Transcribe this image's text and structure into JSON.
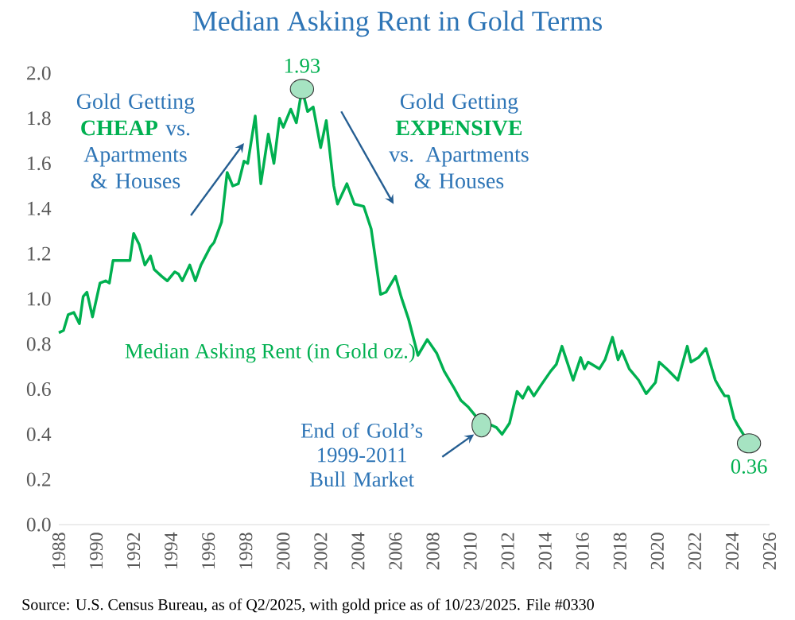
{
  "chart_data": {
    "type": "line",
    "title": "Median Asking Rent in Gold Terms",
    "x": [
      1988.0,
      1988.25,
      1988.5,
      1988.8,
      1989.1,
      1989.3,
      1989.5,
      1989.8,
      1990.2,
      1990.5,
      1990.7,
      1990.9,
      1991.2,
      1991.8,
      1992.0,
      1992.3,
      1992.6,
      1992.9,
      1993.1,
      1993.5,
      1993.8,
      1994.2,
      1994.4,
      1994.6,
      1995.0,
      1995.3,
      1995.6,
      1996.1,
      1996.3,
      1996.7,
      1997.0,
      1997.3,
      1997.6,
      1997.9,
      1998.1,
      1998.5,
      1998.8,
      1999.2,
      1999.5,
      1999.8,
      2000.0,
      2000.4,
      2000.7,
      2001.0,
      2001.3,
      2001.6,
      2002.0,
      2002.3,
      2002.7,
      2002.9,
      2003.4,
      2003.8,
      2004.3,
      2004.7,
      2005.2,
      2005.5,
      2006.0,
      2006.3,
      2006.7,
      2007.2,
      2007.7,
      2008.2,
      2008.6,
      2009.1,
      2009.5,
      2009.9,
      2010.4,
      2010.6,
      2010.9,
      2011.4,
      2011.7,
      2012.1,
      2012.5,
      2012.8,
      2013.1,
      2013.4,
      2013.8,
      2014.3,
      2014.6,
      2014.9,
      2015.5,
      2015.9,
      2016.1,
      2016.3,
      2016.9,
      2017.2,
      2017.6,
      2017.9,
      2018.1,
      2018.5,
      2019.0,
      2019.4,
      2019.9,
      2020.1,
      2020.5,
      2021.1,
      2021.6,
      2021.8,
      2022.2,
      2022.6,
      2023.1,
      2023.3,
      2023.6,
      2023.8,
      2024.1,
      2024.3,
      2024.9
    ],
    "series": [
      {
        "name": "Median Asking Rent (in Gold oz.)",
        "color": "#00b050",
        "values": [
          0.85,
          0.86,
          0.93,
          0.94,
          0.89,
          1.01,
          1.03,
          0.92,
          1.07,
          1.08,
          1.07,
          1.17,
          1.17,
          1.17,
          1.29,
          1.24,
          1.15,
          1.19,
          1.13,
          1.1,
          1.08,
          1.12,
          1.11,
          1.08,
          1.15,
          1.08,
          1.15,
          1.23,
          1.25,
          1.34,
          1.56,
          1.5,
          1.51,
          1.61,
          1.6,
          1.81,
          1.51,
          1.73,
          1.6,
          1.8,
          1.76,
          1.84,
          1.78,
          1.93,
          1.83,
          1.85,
          1.67,
          1.79,
          1.5,
          1.42,
          1.51,
          1.42,
          1.41,
          1.31,
          1.02,
          1.03,
          1.1,
          1.01,
          0.91,
          0.75,
          0.82,
          0.76,
          0.68,
          0.61,
          0.55,
          0.52,
          0.47,
          0.44,
          0.45,
          0.43,
          0.4,
          0.45,
          0.59,
          0.56,
          0.61,
          0.57,
          0.62,
          0.68,
          0.71,
          0.79,
          0.64,
          0.74,
          0.69,
          0.72,
          0.69,
          0.73,
          0.83,
          0.73,
          0.77,
          0.69,
          0.64,
          0.58,
          0.63,
          0.72,
          0.69,
          0.64,
          0.79,
          0.72,
          0.74,
          0.78,
          0.64,
          0.61,
          0.57,
          0.57,
          0.47,
          0.44,
          0.36
        ],
        "value_labels": [
          null,
          null,
          null,
          null,
          null,
          null,
          null,
          null,
          null,
          null,
          null,
          null,
          null,
          null,
          null,
          null,
          null,
          null,
          null,
          null,
          null,
          null,
          null,
          null,
          null,
          null,
          null,
          null,
          null,
          null,
          null,
          null,
          null,
          null,
          null,
          null,
          null,
          null,
          null,
          null,
          null,
          null,
          null,
          "1.93",
          null,
          null,
          null,
          null,
          null,
          null,
          null,
          null,
          null,
          null,
          null,
          null,
          null,
          null,
          null,
          null,
          null,
          null,
          null,
          null,
          null,
          null,
          null,
          null,
          null,
          null,
          null,
          null,
          null,
          null,
          null,
          null,
          null,
          null,
          null,
          null,
          null,
          null,
          null,
          null,
          null,
          null,
          null,
          null,
          null,
          null,
          null,
          null,
          null,
          null,
          null,
          null,
          null,
          null,
          null,
          null,
          null,
          null,
          null,
          null,
          null,
          null,
          "0.36"
        ]
      }
    ],
    "xlim": [
      1988,
      2026
    ],
    "ylim": [
      0,
      2
    ],
    "xticks": [
      1988,
      1990,
      1992,
      1994,
      1996,
      1998,
      2000,
      2002,
      2004,
      2006,
      2008,
      2010,
      2012,
      2014,
      2016,
      2018,
      2020,
      2022,
      2024,
      2026
    ],
    "yticks": [
      {
        "value": 0,
        "label": "0.0"
      },
      {
        "value": 0.2,
        "label": "0.2"
      },
      {
        "value": 0.4,
        "label": "0.4"
      },
      {
        "value": 0.6,
        "label": "0.6"
      },
      {
        "value": 0.8,
        "label": "0.8"
      },
      {
        "value": 1.0,
        "label": "1.0"
      },
      {
        "value": 1.2,
        "label": "1.2"
      },
      {
        "value": 1.4,
        "label": "1.4"
      },
      {
        "value": 1.6,
        "label": "1.6"
      },
      {
        "value": 1.8,
        "label": "1.8"
      },
      {
        "value": 2.0,
        "label": "2.0"
      }
    ],
    "annotations": [
      "Gold Getting **CHEAP** vs. Apartments & Houses",
      "Gold Getting **EXPENSIVE** vs. Apartments & Houses",
      {
        "text": "End of Gold’s 1999-2011 Bull Market",
        "x": 2010.6,
        "y": 0.44
      },
      "Source: U.S. Census Bureau, as of Q2/2025, with gold price as of 10/23/2025. File #0330"
    ]
  }
}
